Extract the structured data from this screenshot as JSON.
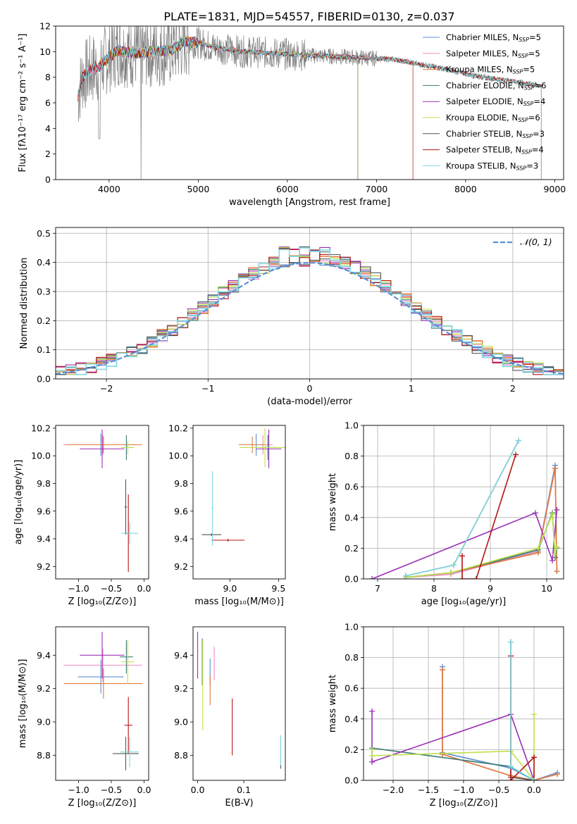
{
  "figure_title": "PLATE=1831, MJD=54557, FIBERID=0130, z=0.037",
  "colors": {
    "chabrier_miles": "#5b8fd6",
    "salpeter_miles": "#ef8cc6",
    "kroupa_miles": "#e07b39",
    "chabrier_elodie": "#3d7a74",
    "salpeter_elodie": "#9b30b5",
    "kroupa_elodie": "#bfe04a",
    "chabrier_stelib": "#555555",
    "salpeter_stelib": "#b51414",
    "kroupa_stelib": "#7fd9e0",
    "gaussian": "#5b8fd6"
  },
  "chart_data": [
    {
      "id": "spectrum",
      "type": "line",
      "title": "PLATE=1831, MJD=54557, FIBERID=0130, z=0.037",
      "xlabel": "wavelength [Angstrom, rest frame]",
      "ylabel": "Flux [fλ10⁻¹⁷ erg cm⁻² s⁻¹ A⁻¹]",
      "xlim": [
        3400,
        9100
      ],
      "ylim": [
        0,
        12
      ],
      "xticks": [
        "4000",
        "5000",
        "6000",
        "7000",
        "8000",
        "9000"
      ],
      "yticks": [
        "0",
        "2",
        "4",
        "6",
        "8",
        "10",
        "12"
      ],
      "legend_position": "top-right",
      "series": [
        {
          "name": "Chabrier MILES, N",
          "sub": "SSP",
          "suffix": "=5",
          "color_key": "chabrier_miles"
        },
        {
          "name": "Salpeter MILES, N",
          "sub": "SSP",
          "suffix": "=5",
          "color_key": "salpeter_miles"
        },
        {
          "name": "Kroupa MILES, N",
          "sub": "SSP",
          "suffix": "=5",
          "color_key": "kroupa_miles"
        },
        {
          "name": "Chabrier ELODIE, N",
          "sub": "SSP",
          "suffix": "=6",
          "color_key": "chabrier_elodie"
        },
        {
          "name": "Salpeter ELODIE, N",
          "sub": "SSP",
          "suffix": "=4",
          "color_key": "salpeter_elodie"
        },
        {
          "name": "Kroupa ELODIE, N",
          "sub": "SSP",
          "suffix": "=6",
          "color_key": "kroupa_elodie"
        },
        {
          "name": "Chabrier STELIB, N",
          "sub": "SSP",
          "suffix": "=3",
          "color_key": "chabrier_stelib"
        },
        {
          "name": "Salpeter STELIB, N",
          "sub": "SSP",
          "suffix": "=4",
          "color_key": "salpeter_stelib"
        },
        {
          "name": "Kroupa STELIB, N",
          "sub": "SSP",
          "suffix": "=3",
          "color_key": "kroupa_stelib"
        }
      ],
      "model_continuum": {
        "x": [
          3650,
          3700,
          3800,
          3900,
          4000,
          4100,
          4300,
          4500,
          4700,
          4860,
          5000,
          5200,
          5500,
          5800,
          6000,
          6300,
          6600,
          6900,
          7200,
          7500,
          7800,
          8100,
          8400,
          8700,
          8850
        ],
        "y": [
          6.5,
          8.0,
          8.6,
          8.9,
          9.6,
          10.1,
          9.9,
          10.0,
          10.1,
          10.8,
          10.7,
          10.3,
          10.0,
          9.9,
          9.8,
          9.7,
          9.6,
          9.5,
          9.4,
          9.0,
          8.6,
          8.1,
          7.8,
          7.5,
          7.3
        ]
      },
      "range_ends": [
        {
          "color_key": "chabrier_miles",
          "start": 3650,
          "end": 7410
        },
        {
          "color_key": "salpeter_miles",
          "start": 3650,
          "end": 7410
        },
        {
          "color_key": "kroupa_miles",
          "start": 3650,
          "end": 7410
        },
        {
          "color_key": "chabrier_elodie",
          "start": 3890,
          "end": 6790
        },
        {
          "color_key": "salpeter_elodie",
          "start": 3890,
          "end": 6790
        },
        {
          "color_key": "kroupa_elodie",
          "start": 3890,
          "end": 6790
        },
        {
          "color_key": "chabrier_stelib",
          "start": 3650,
          "end": 8850
        },
        {
          "color_key": "salpeter_stelib",
          "start": 3650,
          "end": 8850
        },
        {
          "color_key": "kroupa_stelib",
          "start": 3650,
          "end": 8850
        }
      ]
    },
    {
      "id": "residuals",
      "type": "area",
      "xlabel": "(data-model)/error",
      "ylabel": "Normed distribution",
      "xlim": [
        -2.5,
        2.5
      ],
      "ylim": [
        0,
        0.52
      ],
      "xticks": [
        "−2",
        "−1",
        "0",
        "1",
        "2"
      ],
      "yticks": [
        "0.0",
        "0.1",
        "0.2",
        "0.3",
        "0.4",
        "0.5"
      ],
      "grid": true,
      "legend_position": "top-right",
      "legend_label": "𝒩(0, 1)",
      "bin_width": 0.1
    },
    {
      "id": "age_vs_Z",
      "type": "scatter",
      "xlabel": "Z [log₁₀(Z/Z⊙)]",
      "ylabel": "age  [log₁₀(age/yr)]",
      "xlim": [
        -1.35,
        0.07
      ],
      "ylim": [
        9.11,
        10.22
      ],
      "xticks": [
        "−1.0",
        "−0.5",
        "0.0"
      ],
      "yticks": [
        "9.2",
        "9.4",
        "9.6",
        "9.8",
        "10.0",
        "10.2"
      ],
      "points": [
        {
          "color_key": "chabrier_miles",
          "x": -0.66,
          "y": 10.08,
          "xerr": 0.57,
          "yerr": 0.08
        },
        {
          "color_key": "salpeter_miles",
          "x": -0.63,
          "y": 10.08,
          "xerr": 0.6,
          "yerr": 0.07
        },
        {
          "color_key": "kroupa_miles",
          "x": -0.62,
          "y": 10.08,
          "xerr": 0.58,
          "yerr": 0.06
        },
        {
          "color_key": "chabrier_elodie",
          "x": -0.27,
          "y": 10.06,
          "xerr": 0.03,
          "yerr": 0.09
        },
        {
          "color_key": "salpeter_elodie",
          "x": -0.64,
          "y": 10.05,
          "xerr": 0.34,
          "yerr": 0.14
        },
        {
          "color_key": "kroupa_elodie",
          "x": -0.25,
          "y": 10.06,
          "xerr": 0.1,
          "yerr": 0.05
        },
        {
          "color_key": "chabrier_stelib",
          "x": -0.28,
          "y": 9.63,
          "xerr": 0.02,
          "yerr": 0.2
        },
        {
          "color_key": "salpeter_stelib",
          "x": -0.24,
          "y": 9.44,
          "xerr": 0.03,
          "yerr": 0.28
        },
        {
          "color_key": "kroupa_stelib",
          "x": -0.22,
          "y": 9.44,
          "xerr": 0.13,
          "yerr": 0.08
        }
      ]
    },
    {
      "id": "age_vs_mass",
      "type": "scatter",
      "xlabel": "mass [log₁₀(M/M⊙)]",
      "ylabel": "",
      "xlim": [
        8.62,
        9.57
      ],
      "ylim": [
        9.11,
        10.22
      ],
      "xticks": [
        "9.0",
        "9.5"
      ],
      "yticks": [
        "9.2",
        "9.4",
        "9.6",
        "9.8",
        "10.0",
        "10.2"
      ],
      "points": [
        {
          "color_key": "chabrier_miles",
          "x": 9.27,
          "y": 10.08,
          "xerr": 0.14,
          "yerr": 0.08
        },
        {
          "color_key": "salpeter_miles",
          "x": 9.34,
          "y": 10.08,
          "xerr": 0.1,
          "yerr": 0.07
        },
        {
          "color_key": "kroupa_miles",
          "x": 9.23,
          "y": 10.08,
          "xerr": 0.14,
          "yerr": 0.06
        },
        {
          "color_key": "chabrier_elodie",
          "x": 9.39,
          "y": 10.06,
          "xerr": 0.08,
          "yerr": 0.09
        },
        {
          "color_key": "salpeter_elodie",
          "x": 9.4,
          "y": 10.05,
          "xerr": 0.13,
          "yerr": 0.14
        },
        {
          "color_key": "kroupa_elodie",
          "x": 9.36,
          "y": 10.06,
          "xerr": 0.26,
          "yerr": 0.14
        },
        {
          "color_key": "chabrier_stelib",
          "x": 8.81,
          "y": 9.43,
          "xerr": 0.1,
          "yerr": 0.01
        },
        {
          "color_key": "salpeter_stelib",
          "x": 8.98,
          "y": 9.39,
          "xerr": 0.17,
          "yerr": 0.01
        },
        {
          "color_key": "kroupa_stelib",
          "x": 8.82,
          "y": 9.62,
          "xerr": 0.01,
          "yerr": 0.27
        }
      ]
    },
    {
      "id": "weights_vs_age",
      "type": "line",
      "xlabel": "age  [log₁₀(age/yr)]",
      "ylabel": "mass weight",
      "xlim": [
        6.75,
        10.3
      ],
      "ylim": [
        0,
        1.0
      ],
      "xticks": [
        "7",
        "8",
        "9",
        "10"
      ],
      "yticks": [
        "0.0",
        "0.2",
        "0.4",
        "0.6",
        "0.8",
        "1.0"
      ],
      "grid": true,
      "series": [
        {
          "color_key": "chabrier_miles",
          "x": [
            7.5,
            8.3,
            9.85,
            10.15,
            10.18
          ],
          "y": [
            0.01,
            0.04,
            0.18,
            0.74,
            0.05
          ]
        },
        {
          "color_key": "salpeter_miles",
          "x": [
            7.5,
            8.3,
            9.85,
            10.15,
            10.18
          ],
          "y": [
            0.01,
            0.03,
            0.18,
            0.72,
            0.05
          ]
        },
        {
          "color_key": "kroupa_miles",
          "x": [
            7.5,
            8.3,
            9.85,
            10.15,
            10.18
          ],
          "y": [
            0.01,
            0.04,
            0.17,
            0.72,
            0.05
          ]
        },
        {
          "color_key": "chabrier_elodie",
          "x": [
            7.5,
            8.3,
            9.85,
            10.1,
            10.15,
            10.18
          ],
          "y": [
            0.01,
            0.04,
            0.19,
            0.43,
            0.14,
            0.2
          ]
        },
        {
          "color_key": "salpeter_elodie",
          "x": [
            6.9,
            9.8,
            10.1,
            10.18
          ],
          "y": [
            0.0,
            0.43,
            0.12,
            0.45
          ]
        },
        {
          "color_key": "kroupa_elodie",
          "x": [
            7.5,
            8.3,
            9.85,
            10.1,
            10.15,
            10.18
          ],
          "y": [
            0.01,
            0.04,
            0.2,
            0.42,
            0.16,
            0.21
          ]
        },
        {
          "color_key": "chabrier_stelib",
          "x": [
            7.5,
            8.35,
            9.5
          ],
          "y": [
            0.02,
            0.09,
            0.9
          ]
        },
        {
          "color_key": "salpeter_stelib",
          "x": [
            8.5,
            8.5,
            8.75,
            9.45
          ],
          "y": [
            0.15,
            0.0,
            0.0,
            0.81
          ]
        },
        {
          "color_key": "kroupa_stelib",
          "x": [
            7.5,
            8.35,
            9.5
          ],
          "y": [
            0.02,
            0.09,
            0.9
          ]
        }
      ]
    },
    {
      "id": "mass_vs_Z",
      "type": "scatter",
      "xlabel": "Z [log₁₀(Z/Z⊙)]",
      "ylabel": "mass [log₁₀(M/M⊙)]",
      "xlim": [
        -1.35,
        0.07
      ],
      "ylim": [
        8.65,
        9.57
      ],
      "xticks": [
        "−1.0",
        "−0.5",
        "0.0"
      ],
      "yticks": [
        "8.8",
        "9.0",
        "9.2",
        "9.4"
      ],
      "points": [
        {
          "color_key": "chabrier_miles",
          "x": -0.66,
          "y": 9.27,
          "xerr": 0.35,
          "yerr": 0.1
        },
        {
          "color_key": "salpeter_miles",
          "x": -0.63,
          "y": 9.34,
          "xerr": 0.6,
          "yerr": 0.1
        },
        {
          "color_key": "kroupa_miles",
          "x": -0.62,
          "y": 9.23,
          "xerr": 0.6,
          "yerr": 0.09
        },
        {
          "color_key": "chabrier_elodie",
          "x": -0.27,
          "y": 9.39,
          "xerr": 0.1,
          "yerr": 0.1
        },
        {
          "color_key": "salpeter_elodie",
          "x": -0.64,
          "y": 9.4,
          "xerr": 0.34,
          "yerr": 0.14
        },
        {
          "color_key": "kroupa_elodie",
          "x": -0.25,
          "y": 9.36,
          "xerr": 0.1,
          "yerr": 0.13
        },
        {
          "color_key": "chabrier_stelib",
          "x": -0.28,
          "y": 8.81,
          "xerr": 0.2,
          "yerr": 0.1
        },
        {
          "color_key": "salpeter_stelib",
          "x": -0.24,
          "y": 8.98,
          "xerr": 0.06,
          "yerr": 0.17
        },
        {
          "color_key": "kroupa_stelib",
          "x": -0.22,
          "y": 8.82,
          "xerr": 0.14,
          "yerr": 0.09
        }
      ]
    },
    {
      "id": "mass_vs_ebv",
      "type": "scatter",
      "xlabel": "E(B-V)",
      "ylabel": "",
      "xlim": [
        -0.01,
        0.19
      ],
      "ylim": [
        8.65,
        9.57
      ],
      "xticks": [
        "0.0",
        "0.1"
      ],
      "yticks": [
        "8.8",
        "9.0",
        "9.2",
        "9.4"
      ],
      "points": [
        {
          "color_key": "chabrier_miles",
          "x": 0.027,
          "y": 9.3,
          "xerr": 0.0,
          "yerr": 0.08
        },
        {
          "color_key": "salpeter_miles",
          "x": 0.036,
          "y": 9.35,
          "xerr": 0.0,
          "yerr": 0.1
        },
        {
          "color_key": "kroupa_miles",
          "x": 0.027,
          "y": 9.19,
          "xerr": 0.0,
          "yerr": 0.09
        },
        {
          "color_key": "chabrier_elodie",
          "x": 0.01,
          "y": 9.36,
          "xerr": 0.0,
          "yerr": 0.14
        },
        {
          "color_key": "salpeter_elodie",
          "x": 0.0,
          "y": 9.4,
          "xerr": 0.0,
          "yerr": 0.14
        },
        {
          "color_key": "kroupa_elodie",
          "x": 0.011,
          "y": 9.22,
          "xerr": 0.0,
          "yerr": 0.27
        },
        {
          "color_key": "chabrier_stelib",
          "x": 0.18,
          "y": 8.82,
          "xerr": 0.0,
          "yerr": 0.1
        },
        {
          "color_key": "salpeter_stelib",
          "x": 0.075,
          "y": 8.97,
          "xerr": 0.0,
          "yerr": 0.17
        },
        {
          "color_key": "kroupa_stelib",
          "x": 0.18,
          "y": 8.83,
          "xerr": 0.0,
          "yerr": 0.09
        }
      ]
    },
    {
      "id": "weights_vs_Z",
      "type": "line",
      "xlabel": "Z [log₁₀(Z/Z⊙)]",
      "ylabel": "mass weight",
      "xlim": [
        -2.42,
        0.42
      ],
      "ylim": [
        0,
        1.0
      ],
      "xticks": [
        "−2.0",
        "−1.5",
        "−1.0",
        "−0.5",
        "0.0"
      ],
      "yticks": [
        "0.0",
        "0.2",
        "0.4",
        "0.6",
        "0.8",
        "1.0"
      ],
      "grid": true,
      "series": [
        {
          "color_key": "chabrier_miles",
          "x": [
            -1.3,
            -1.3,
            -0.33,
            0.0,
            0.33
          ],
          "y": [
            0.74,
            0.18,
            0.08,
            0.0,
            0.05
          ]
        },
        {
          "color_key": "salpeter_miles",
          "x": [
            -1.3,
            -1.3,
            -0.33,
            0.0,
            0.33
          ],
          "y": [
            0.72,
            0.17,
            0.03,
            0.0,
            0.04
          ]
        },
        {
          "color_key": "kroupa_miles",
          "x": [
            -1.3,
            -1.3,
            -0.33,
            0.0,
            0.33
          ],
          "y": [
            0.72,
            0.17,
            0.03,
            0.0,
            0.04
          ]
        },
        {
          "color_key": "chabrier_elodie",
          "x": [
            -2.3,
            -0.33,
            0.0
          ],
          "y": [
            0.21,
            0.09,
            0.0
          ]
        },
        {
          "color_key": "salpeter_elodie",
          "x": [
            -2.3,
            -2.3,
            -0.33,
            0.0
          ],
          "y": [
            0.45,
            0.12,
            0.43,
            0.0
          ]
        },
        {
          "color_key": "kroupa_elodie",
          "x": [
            -2.3,
            -2.3,
            -0.33,
            0.0,
            0.0
          ],
          "y": [
            0.2,
            0.16,
            0.19,
            0.0,
            0.43
          ]
        },
        {
          "color_key": "chabrier_stelib",
          "x": [
            -0.33,
            -0.33,
            0.0
          ],
          "y": [
            0.9,
            0.02,
            0.0
          ]
        },
        {
          "color_key": "salpeter_stelib",
          "x": [
            -0.33,
            -0.33,
            0.0,
            0.0
          ],
          "y": [
            0.81,
            0.0,
            0.15,
            0.0
          ]
        },
        {
          "color_key": "kroupa_stelib",
          "x": [
            -0.33,
            -0.33,
            0.0
          ],
          "y": [
            0.9,
            0.09,
            0.0
          ]
        }
      ]
    }
  ]
}
